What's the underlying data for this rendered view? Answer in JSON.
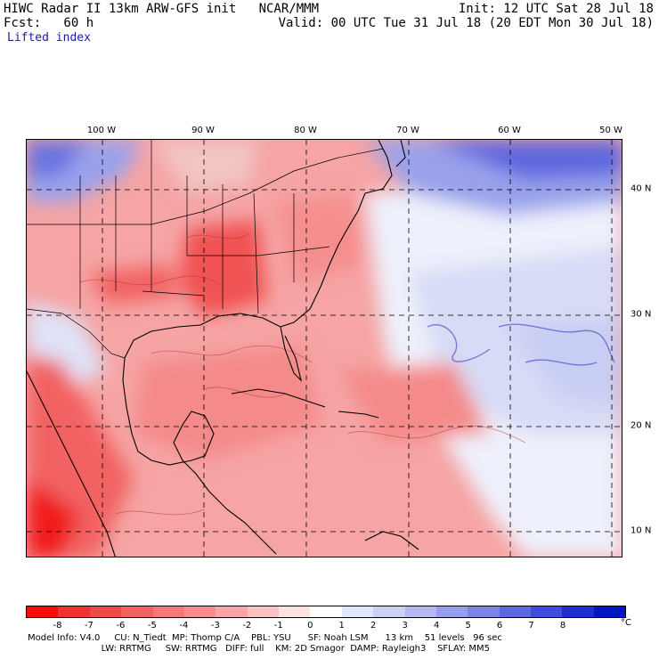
{
  "header": {
    "title": "HIWC Radar II 13km ARW-GFS init   NCAR/MMM",
    "fcst": "Fcst:   60 h",
    "field": "Lifted index",
    "init": "Init: 12 UTC Sat 28 Jul 18",
    "valid": "Valid: 00 UTC Tue 31 Jul 18 (20 EDT Mon 30 Jul 18)"
  },
  "map": {
    "lon_labels": [
      "100 W",
      "90 W",
      "80 W",
      "70 W",
      "60 W",
      "50 W"
    ],
    "lat_labels": [
      "40 N",
      "30 N",
      "20 N",
      "10 N"
    ],
    "grid": "dashed"
  },
  "colorbar": {
    "labels": [
      "-8",
      "-7",
      "-6",
      "-5",
      "-4",
      "-3",
      "-2",
      "-1",
      "0",
      "1",
      "2",
      "3",
      "4",
      "5",
      "6",
      "7",
      "8"
    ],
    "unit": "°C",
    "colors": [
      "#ff0a0a",
      "#f23030",
      "#f04848",
      "#f26262",
      "#f47878",
      "#f68e8e",
      "#f8a6a6",
      "#fbc3c3",
      "#fde2e2",
      "#ffffff",
      "#e4e6fa",
      "#cbd0f5",
      "#b2b8f0",
      "#979eea",
      "#7c84e4",
      "#5d67de",
      "#3f4bd9",
      "#1f2ed3",
      "#0016c8"
    ]
  },
  "model_info": {
    "line1": "Model Info: V4.0     CU: N_Tiedt  MP: Thomp C/A    PBL: YSU      SF: Noah LSM      13 km    51 levels   96 sec",
    "line2": "                          LW: RRTMG     SW: RRTMG   DIFF: full    KM: 2D Smagor  DAMP: Rayleigh3    SFLAY: MM5"
  }
}
